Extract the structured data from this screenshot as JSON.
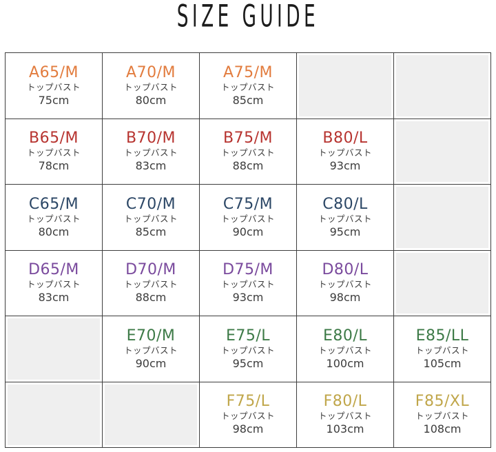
{
  "title": "SIZE GUIDE",
  "colors": {
    "row_a": "#E27C3E",
    "row_b": "#B73430",
    "row_c": "#2C4766",
    "row_d": "#7A4A9D",
    "row_e": "#3D7A47",
    "row_f": "#C0A64A",
    "grid_border": "#3D3D3D",
    "empty_cell_bg": "#EFEFEF",
    "body_text": "#3B3B3B"
  },
  "table": {
    "rows": [
      {
        "band": "A",
        "color": "#E27C3E",
        "cells": [
          {
            "size": "A65/M",
            "bust_label": "トップバスト",
            "bust_value": "75cm"
          },
          {
            "size": "A70/M",
            "bust_label": "トップバスト",
            "bust_value": "80cm"
          },
          {
            "size": "A75/M",
            "bust_label": "トップバスト",
            "bust_value": "85cm"
          },
          {
            "empty": true
          },
          {
            "empty": true
          }
        ]
      },
      {
        "band": "B",
        "color": "#B73430",
        "cells": [
          {
            "size": "B65/M",
            "bust_label": "トップバスト",
            "bust_value": "78cm"
          },
          {
            "size": "B70/M",
            "bust_label": "トップバスト",
            "bust_value": "83cm"
          },
          {
            "size": "B75/M",
            "bust_label": "トップバスト",
            "bust_value": "88cm"
          },
          {
            "size": "B80/L",
            "bust_label": "トップバスト",
            "bust_value": "93cm"
          },
          {
            "empty": true
          }
        ]
      },
      {
        "band": "C",
        "color": "#2C4766",
        "cells": [
          {
            "size": "C65/M",
            "bust_label": "トップバスト",
            "bust_value": "80cm"
          },
          {
            "size": "C70/M",
            "bust_label": "トップバスト",
            "bust_value": "85cm"
          },
          {
            "size": "C75/M",
            "bust_label": "トップバスト",
            "bust_value": "90cm"
          },
          {
            "size": "C80/L",
            "bust_label": "トップバスト",
            "bust_value": "95cm"
          },
          {
            "empty": true
          }
        ]
      },
      {
        "band": "D",
        "color": "#7A4A9D",
        "cells": [
          {
            "size": "D65/M",
            "bust_label": "トップバスト",
            "bust_value": "83cm"
          },
          {
            "size": "D70/M",
            "bust_label": "トップバスト",
            "bust_value": "88cm"
          },
          {
            "size": "D75/M",
            "bust_label": "トップバスト",
            "bust_value": "93cm"
          },
          {
            "size": "D80/L",
            "bust_label": "トップバスト",
            "bust_value": "98cm"
          },
          {
            "empty": true
          }
        ]
      },
      {
        "band": "E",
        "color": "#3D7A47",
        "cells": [
          {
            "empty": true
          },
          {
            "size": "E70/M",
            "bust_label": "トップバスト",
            "bust_value": "90cm"
          },
          {
            "size": "E75/L",
            "bust_label": "トップバスト",
            "bust_value": "95cm"
          },
          {
            "size": "E80/L",
            "bust_label": "トップバスト",
            "bust_value": "100cm"
          },
          {
            "size": "E85/LL",
            "bust_label": "トップバスト",
            "bust_value": "105cm"
          }
        ]
      },
      {
        "band": "F",
        "color": "#C0A64A",
        "cells": [
          {
            "empty": true
          },
          {
            "empty": true
          },
          {
            "size": "F75/L",
            "bust_label": "トップバスト",
            "bust_value": "98cm"
          },
          {
            "size": "F80/L",
            "bust_label": "トップバスト",
            "bust_value": "103cm"
          },
          {
            "size": "F85/XL",
            "bust_label": "トップバスト",
            "bust_value": "108cm"
          }
        ]
      }
    ]
  }
}
